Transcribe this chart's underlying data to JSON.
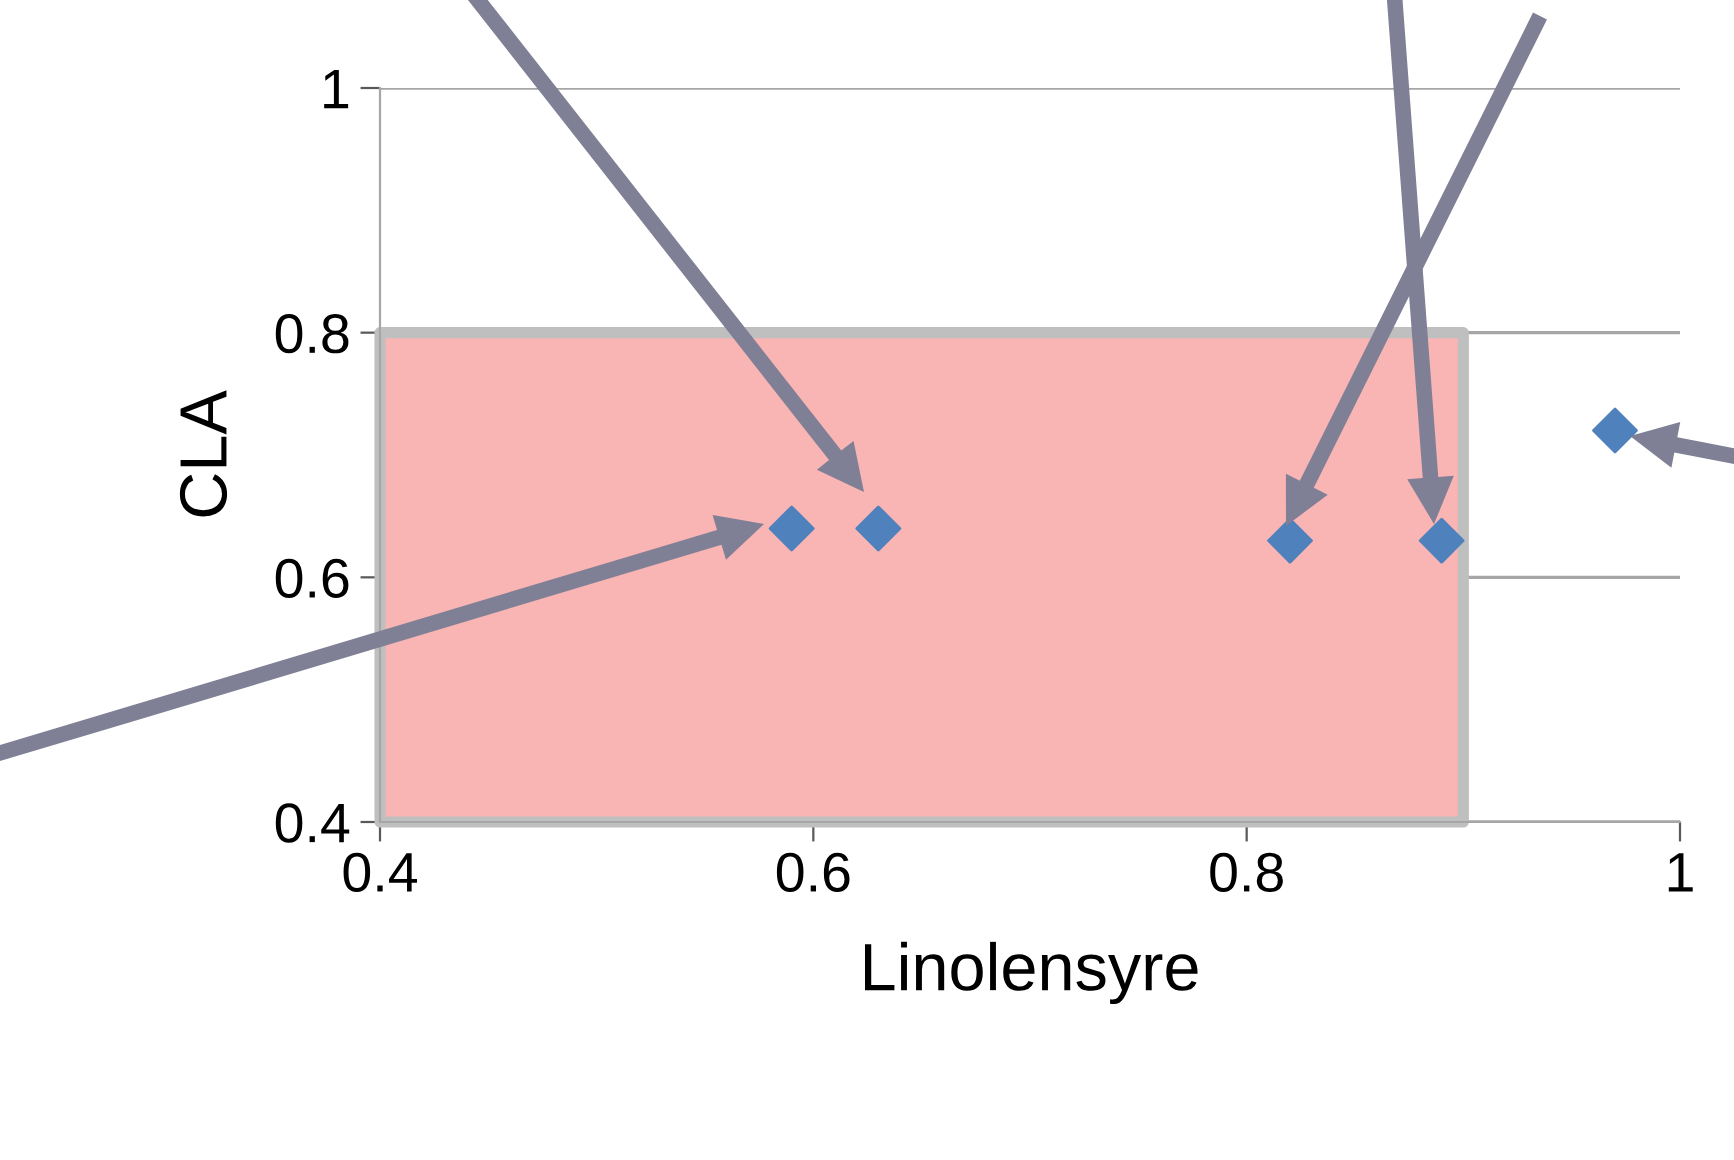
{
  "chart_data": {
    "type": "scatter",
    "xlabel": "Linolensyre",
    "ylabel": "CLA",
    "x": [
      0.59,
      0.63,
      0.82,
      0.89,
      0.97
    ],
    "series": [
      {
        "type": "area",
        "x": [
          0.4,
          0.9
        ],
        "color": "#f9b4b4",
        "values": [
          0.8,
          0.8
        ]
      },
      {
        "color": "#4f81bd",
        "marker": "diamond",
        "values": [
          0.64,
          0.64,
          0.63,
          0.63,
          0.72
        ]
      }
    ],
    "xlim": [
      0.4,
      1
    ],
    "ylim": [
      0.4,
      1
    ],
    "xticks": [
      0.4,
      0.6,
      0.8,
      1
    ],
    "yticks": [
      0.4,
      0.6,
      0.8,
      1
    ],
    "grid": "y"
  }
}
